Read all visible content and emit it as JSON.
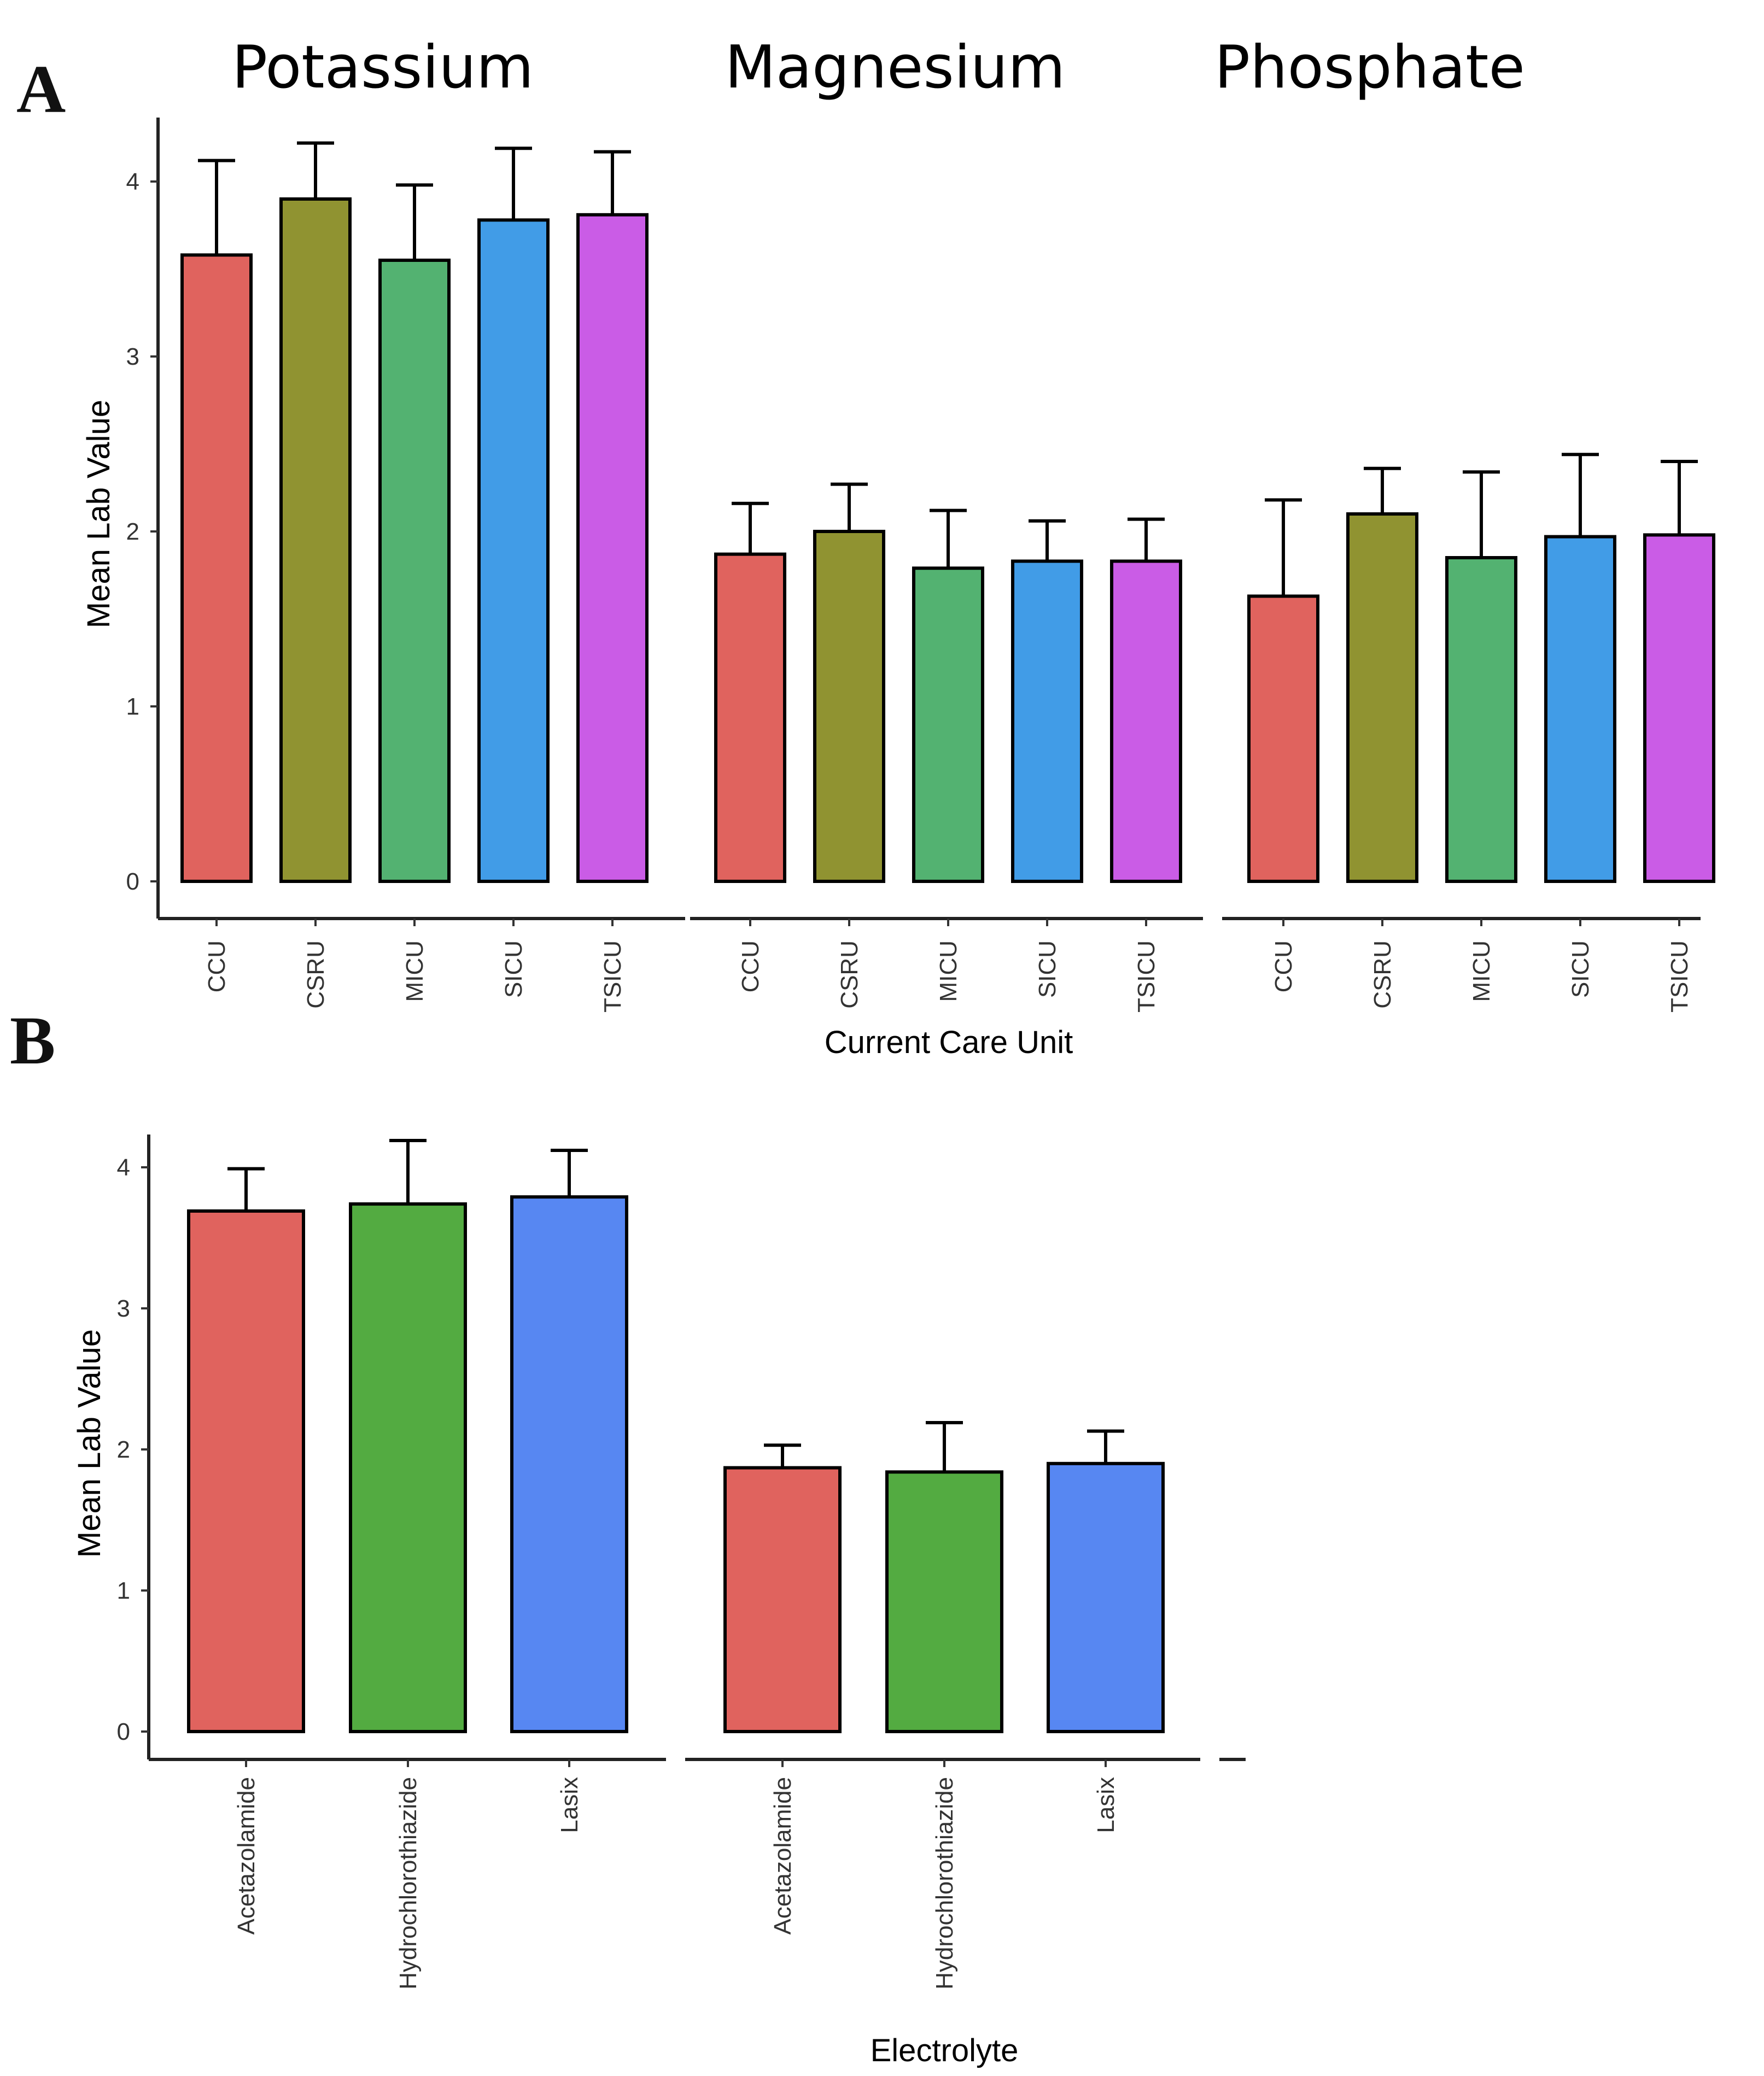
{
  "colors": {
    "A": [
      "#e0635e",
      "#909331",
      "#53b271",
      "#419ce7",
      "#ca5ce6"
    ],
    "B": [
      "#e0635e",
      "#53ab41",
      "#5787f2"
    ]
  },
  "chart_data": [
    {
      "id": "A",
      "panel_label": "A",
      "type": "bar",
      "xlabel": "Current Care Unit",
      "ylabel": "Mean Lab Value",
      "ylim": [
        0,
        4.4
      ],
      "yticks": [
        "0",
        "1",
        "2",
        "3",
        "4"
      ],
      "grid": false,
      "categories": [
        "CCU",
        "CSRU",
        "MICU",
        "SICU",
        "TSICU"
      ],
      "facets": [
        {
          "title": "Potassium",
          "values": [
            3.58,
            3.9,
            3.55,
            3.78,
            3.81
          ],
          "errors": [
            0.54,
            0.32,
            0.43,
            0.41,
            0.36
          ]
        },
        {
          "title": "Magnesium",
          "values": [
            1.87,
            2.0,
            1.79,
            1.83,
            1.83
          ],
          "errors": [
            0.29,
            0.27,
            0.33,
            0.23,
            0.24
          ]
        },
        {
          "title": "Phosphate",
          "values": [
            1.63,
            2.1,
            1.85,
            1.97,
            1.98
          ],
          "errors": [
            0.55,
            0.26,
            0.49,
            0.47,
            0.42
          ]
        }
      ]
    },
    {
      "id": "B",
      "panel_label": "B",
      "type": "bar",
      "xlabel": "Electrolyte",
      "ylabel": "Mean Lab Value",
      "ylim": [
        0,
        4.2
      ],
      "yticks": [
        "0",
        "1",
        "2",
        "3",
        "4"
      ],
      "grid": false,
      "categories": [
        "Acetazolamide",
        "Hydrochlorothiazide",
        "Lasix"
      ],
      "facets": [
        {
          "title": "",
          "values": [
            3.69,
            3.74,
            3.79
          ],
          "errors": [
            0.3,
            0.45,
            0.33
          ]
        },
        {
          "title": "",
          "values": [
            1.87,
            1.84,
            1.9
          ],
          "errors": [
            0.16,
            0.35,
            0.23
          ]
        }
      ]
    }
  ]
}
